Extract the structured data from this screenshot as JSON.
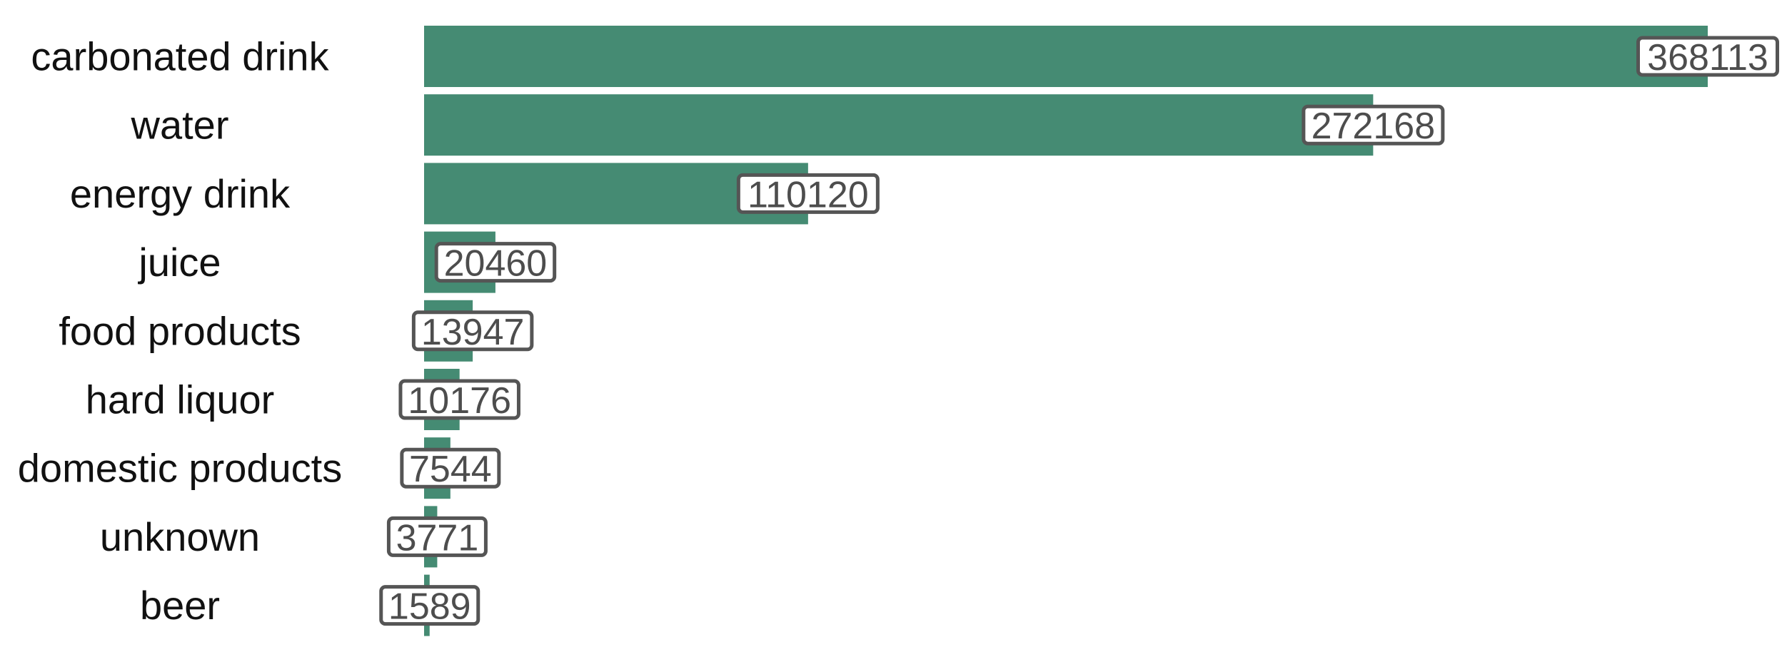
{
  "chart_data": {
    "type": "bar",
    "orientation": "horizontal",
    "categories": [
      "carbonated drink",
      "water",
      "energy drink",
      "juice",
      "food products",
      "hard liquor",
      "domestic products",
      "unknown",
      "beer"
    ],
    "values": [
      368113,
      272168,
      110120,
      20460,
      13947,
      10176,
      7544,
      3771,
      1589
    ],
    "xlim": [
      0,
      368113
    ],
    "grid": false,
    "legend": "none",
    "bar_color": "#458B73",
    "data_labels": true
  }
}
